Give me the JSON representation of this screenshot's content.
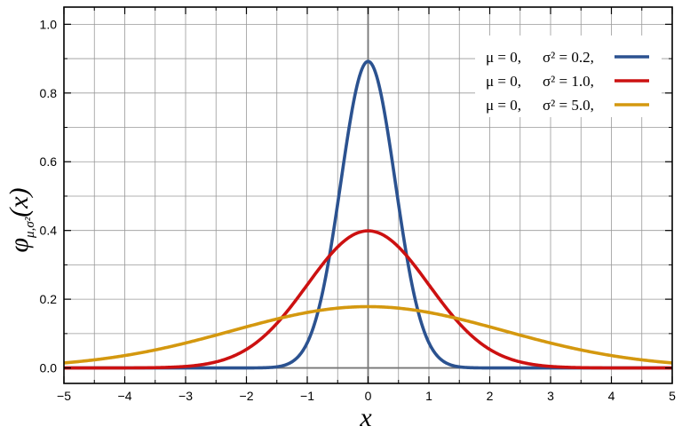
{
  "chart_data": {
    "type": "line",
    "xlabel": "x",
    "ylabel": "φμ,σ²(x)",
    "xlim": [
      -5,
      5
    ],
    "ylim": [
      -0.045,
      1.05
    ],
    "xticks": [
      -5,
      -4,
      -3,
      -2,
      -1,
      0,
      1,
      2,
      3,
      4,
      5
    ],
    "xtick_labels": [
      "−5",
      "−4",
      "−3",
      "−2",
      "−1",
      "0",
      "1",
      "2",
      "3",
      "4",
      "5"
    ],
    "yticks": [
      0.0,
      0.2,
      0.4,
      0.6,
      0.8,
      1.0
    ],
    "ytick_labels": [
      "0.0",
      "0.2",
      "0.4",
      "0.6",
      "0.8",
      "1.0"
    ],
    "grid": true,
    "legend_position": "top-right",
    "series": [
      {
        "mu": 0,
        "sigma2": 0.2,
        "mu_text": "μ = 0,",
        "sigma_text": "σ² = 0.2,",
        "color": "#2b5290",
        "peak": 0.892
      },
      {
        "mu": 0,
        "sigma2": 1.0,
        "mu_text": "μ = 0,",
        "sigma_text": "σ² = 1.0,",
        "color": "#cc1111",
        "peak": 0.399
      },
      {
        "mu": 0,
        "sigma2": 5.0,
        "mu_text": "μ = 0,",
        "sigma_text": "σ² = 5.0,",
        "color": "#d4980f",
        "peak": 0.178
      }
    ]
  }
}
